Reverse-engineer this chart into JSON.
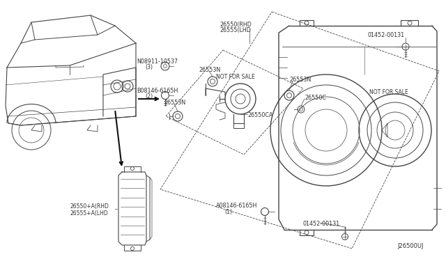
{
  "bg_color": "#ffffff",
  "line_color": "#444444",
  "text_color": "#333333",
  "diagram_code": "J26500UJ",
  "lw": 0.6,
  "font_size": 5.8,
  "labels": {
    "top_center": "26550(RHD\n26555(LHD",
    "top_right": "01452-00131",
    "top_left_bolt": "N08911-10537\n    (3)",
    "mid_left_bolt": "B08146-6165H\n    (2)",
    "label_26553N_a": "26553N",
    "label_26553N_b": "26553N",
    "label_26553N_c": "26553N",
    "not_for_sale_a": "NOT FOR SALE",
    "not_for_sale_b": "NOT FOR SALE",
    "label_26550C": "26550C",
    "label_26550CA": "26550CA",
    "bottom_bolt": "A08146-6165H\n    (1)",
    "bottom_label": "01452-00131",
    "part_label": "26550+A(RHD\n26555+A(LHD",
    "diagram_id": "J26500UJ"
  }
}
